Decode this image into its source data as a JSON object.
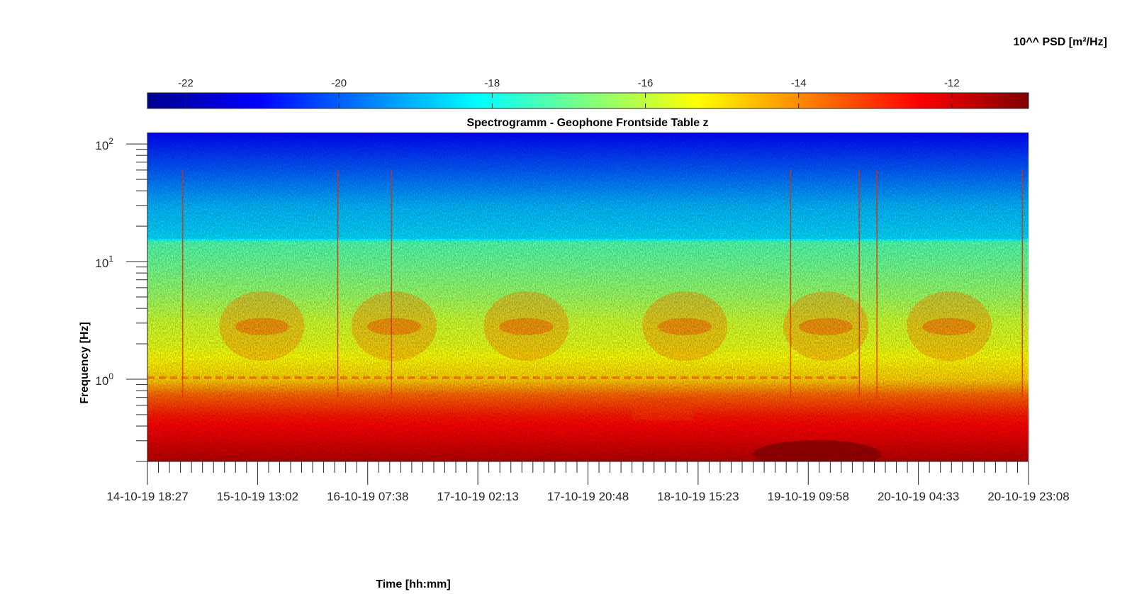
{
  "chart_data": {
    "type": "heatmap",
    "title": "Spectrogramm - Geophone Frontside Table z",
    "xlabel": "Time [hh:mm]",
    "ylabel": "Frequency [Hz]",
    "colorbar_label": "10^^ PSD [m²/Hz]",
    "colormap": "jet",
    "clim": [
      -22.5,
      -11
    ],
    "colorbar_ticks": [
      {
        "value": -22,
        "label": "-22"
      },
      {
        "value": -20,
        "label": "-20"
      },
      {
        "value": -18,
        "label": "-18"
      },
      {
        "value": -16,
        "label": "-16"
      },
      {
        "value": -14,
        "label": "-14"
      },
      {
        "value": -12,
        "label": "-12"
      }
    ],
    "x_ticks": [
      "14-10-19 18:27",
      "15-10-19 13:02",
      "16-10-19 07:38",
      "17-10-19 02:13",
      "17-10-19 20:48",
      "18-10-19 15:23",
      "19-10-19 09:58",
      "20-10-19 04:33",
      "20-10-19 23:08"
    ],
    "xlim": [
      "14-10-19 18:27",
      "20-10-19 23:08"
    ],
    "y_scale": "log",
    "ylim": [
      0.2,
      125
    ],
    "y_ticks": [
      {
        "value": 1,
        "base": "10",
        "exp": "0"
      },
      {
        "value": 10,
        "base": "10",
        "exp": "1"
      },
      {
        "value": 100,
        "base": "10",
        "exp": "2"
      }
    ],
    "psd_profile": [
      {
        "freq": 0.2,
        "psd": -11.6
      },
      {
        "freq": 0.3,
        "psd": -12.1
      },
      {
        "freq": 0.5,
        "psd": -12.7
      },
      {
        "freq": 0.75,
        "psd": -13.6
      },
      {
        "freq": 1.0,
        "psd": -14.8
      },
      {
        "freq": 2.0,
        "psd": -15.6
      },
      {
        "freq": 3.0,
        "psd": -15.8
      },
      {
        "freq": 5.0,
        "psd": -16.4
      },
      {
        "freq": 10.0,
        "psd": -17.0
      },
      {
        "freq": 15.0,
        "psd": -17.3
      },
      {
        "freq": 16.0,
        "psd": -18.6
      },
      {
        "freq": 30.0,
        "psd": -19.0
      },
      {
        "freq": 60.0,
        "psd": -20.0
      },
      {
        "freq": 125.0,
        "psd": -21.0
      }
    ]
  }
}
